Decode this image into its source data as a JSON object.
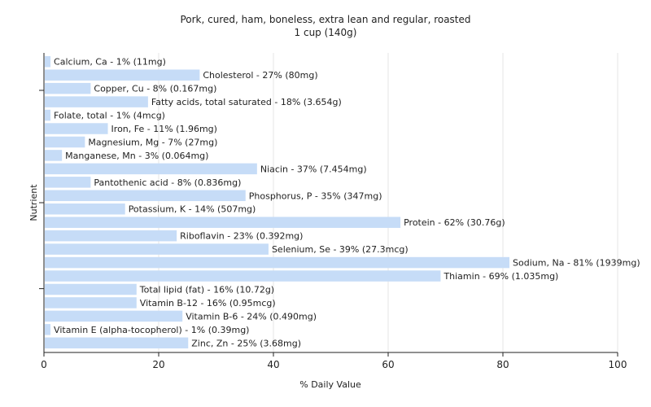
{
  "chart_data": {
    "type": "bar",
    "orientation": "horizontal",
    "title": "Pork, cured, ham, boneless, extra lean and regular, roasted",
    "subtitle": "1 cup (140g)",
    "xlabel": "% Daily Value",
    "ylabel": "Nutrient",
    "xlim": [
      0,
      100
    ],
    "xticks": [
      0,
      20,
      40,
      60,
      80,
      100
    ],
    "grid": true,
    "bar_color": "#c6dcf7",
    "categories": [
      "Calcium, Ca",
      "Cholesterol",
      "Copper, Cu",
      "Fatty acids, total saturated",
      "Folate, total",
      "Iron, Fe",
      "Magnesium, Mg",
      "Manganese, Mn",
      "Niacin",
      "Pantothenic acid",
      "Phosphorus, P",
      "Potassium, K",
      "Protein",
      "Riboflavin",
      "Selenium, Se",
      "Sodium, Na",
      "Thiamin",
      "Total lipid (fat)",
      "Vitamin B-12",
      "Vitamin B-6",
      "Vitamin E (alpha-tocopherol)",
      "Zinc, Zn"
    ],
    "values": [
      1,
      27,
      8,
      18,
      1,
      11,
      7,
      3,
      37,
      8,
      35,
      14,
      62,
      23,
      39,
      81,
      69,
      16,
      16,
      24,
      1,
      25
    ],
    "labels": [
      "Calcium, Ca - 1% (11mg)",
      "Cholesterol - 27% (80mg)",
      "Copper, Cu - 8% (0.167mg)",
      "Fatty acids, total saturated - 18% (3.654g)",
      "Folate, total - 1% (4mcg)",
      "Iron, Fe - 11% (1.96mg)",
      "Magnesium, Mg - 7% (27mg)",
      "Manganese, Mn - 3% (0.064mg)",
      "Niacin - 37% (7.454mg)",
      "Pantothenic acid - 8% (0.836mg)",
      "Phosphorus, P - 35% (347mg)",
      "Potassium, K - 14% (507mg)",
      "Protein - 62% (30.76g)",
      "Riboflavin - 23% (0.392mg)",
      "Selenium, Se - 39% (27.3mcg)",
      "Sodium, Na - 81% (1939mg)",
      "Thiamin - 69% (1.035mg)",
      "Total lipid (fat) - 16% (10.72g)",
      "Vitamin B-12 - 16% (0.95mcg)",
      "Vitamin B-6 - 24% (0.490mg)",
      "Vitamin E (alpha-tocopherol) - 1% (0.39mg)",
      "Zinc, Zn - 25% (3.68mg)"
    ]
  }
}
